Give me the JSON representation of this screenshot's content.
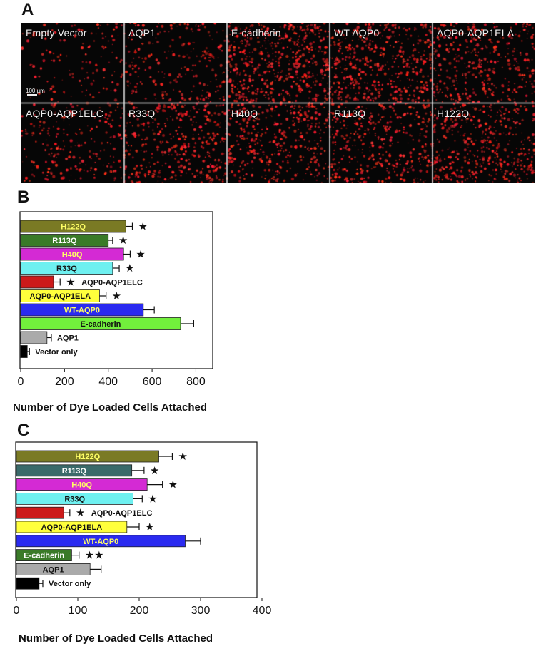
{
  "panel_a": {
    "letter": "A",
    "scale_bar_label": "100 µm",
    "dot_color": "#ff2a2a",
    "tiles": [
      {
        "label": "Empty Vector",
        "density": 0.25
      },
      {
        "label": "AQP1",
        "density": 0.45
      },
      {
        "label": "E-cadherin",
        "density": 1.0
      },
      {
        "label": "WT AQP0",
        "density": 0.9
      },
      {
        "label": "AQP0-AQP1ELA",
        "density": 0.7
      },
      {
        "label": "AQP0-AQP1ELC",
        "density": 0.45
      },
      {
        "label": "R33Q",
        "density": 0.75
      },
      {
        "label": "H40Q",
        "density": 0.75
      },
      {
        "label": "R113Q",
        "density": 0.75
      },
      {
        "label": "H122Q",
        "density": 0.8
      }
    ]
  },
  "chart_data": [
    {
      "letter": "B",
      "type": "bar",
      "orientation": "horizontal",
      "xlabel": "Number of Dye Loaded Cells Attached",
      "xlim": [
        0,
        880
      ],
      "xticks": [
        0,
        200,
        400,
        600,
        800
      ],
      "categories": [
        "H122Q",
        "R113Q",
        "H40Q",
        "R33Q",
        "AQP0-AQP1ELC",
        "AQP0-AQP1ELA",
        "WT-AQP0",
        "E-cadherin",
        "AQP1",
        "Vector only"
      ],
      "values": [
        480,
        400,
        470,
        420,
        150,
        360,
        560,
        730,
        120,
        30
      ],
      "errors": [
        30,
        20,
        30,
        30,
        30,
        30,
        50,
        60,
        20,
        10
      ],
      "colors": [
        "#7a7a24",
        "#3a7a28",
        "#d42ad4",
        "#6ef0f0",
        "#cc1a1a",
        "#ffff3c",
        "#2a2af0",
        "#72f03c",
        "#aaaaaa",
        "#000000"
      ],
      "label_inside": [
        true,
        true,
        true,
        true,
        false,
        true,
        true,
        true,
        false,
        false
      ],
      "label_colors": [
        "#ffff66",
        "#ffffff",
        "#ffff66",
        "#111111",
        "#111111",
        "#111111",
        "#ffff66",
        "#111111",
        "#111111",
        "#111111"
      ],
      "stars": [
        "★",
        "★",
        "★",
        "★",
        "★",
        "★",
        "",
        "",
        "",
        ""
      ]
    },
    {
      "letter": "C",
      "type": "bar",
      "orientation": "horizontal",
      "xlabel": "Number of Dye Loaded Cells Attached",
      "xlim": [
        0,
        400
      ],
      "xticks": [
        0,
        100,
        200,
        300,
        400
      ],
      "categories": [
        "H122Q",
        "R113Q",
        "H40Q",
        "R33Q",
        "AQP0-AQP1ELC",
        "AQP0-AQP1ELA",
        "WT-AQP0",
        "E-cadherin",
        "AQP1",
        "Vector only"
      ],
      "values": [
        232,
        188,
        213,
        190,
        77,
        180,
        275,
        90,
        120,
        37
      ],
      "errors": [
        22,
        20,
        25,
        15,
        10,
        20,
        25,
        12,
        18,
        6
      ],
      "colors": [
        "#7a7a24",
        "#3a6a6a",
        "#d42ad4",
        "#6ef0f0",
        "#cc1a1a",
        "#ffff3c",
        "#2a2af0",
        "#3a7a28",
        "#aaaaaa",
        "#000000"
      ],
      "label_inside": [
        true,
        true,
        true,
        true,
        false,
        true,
        true,
        true,
        true,
        false
      ],
      "label_colors": [
        "#ffff66",
        "#ffffff",
        "#ffff66",
        "#111111",
        "#111111",
        "#111111",
        "#ffff66",
        "#ffffff",
        "#111111",
        "#111111"
      ],
      "stars": [
        "★",
        "★",
        "★",
        "★",
        "★",
        "★",
        "",
        "★★",
        "",
        ""
      ]
    }
  ]
}
